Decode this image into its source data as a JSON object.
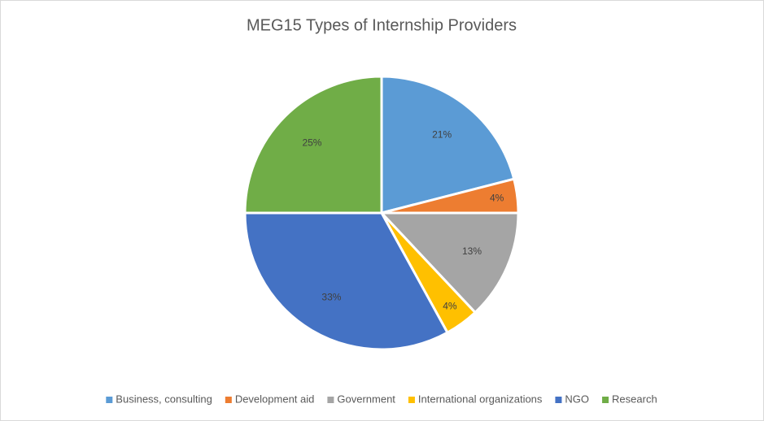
{
  "chart_data": {
    "type": "pie",
    "title": "MEG15 Types of Internship Providers",
    "categories": [
      "Business, consulting",
      "Development aid",
      "Government",
      "International organizations",
      "NGO",
      "Research"
    ],
    "values": [
      21,
      4,
      13,
      4,
      33,
      25
    ],
    "value_labels": [
      "21%",
      "4%",
      "13%",
      "4%",
      "33%",
      "25%"
    ],
    "colors": [
      "#5b9bd5",
      "#ed7d31",
      "#a5a5a5",
      "#ffc000",
      "#4472c4",
      "#70ad47"
    ],
    "legend": "bottom"
  }
}
